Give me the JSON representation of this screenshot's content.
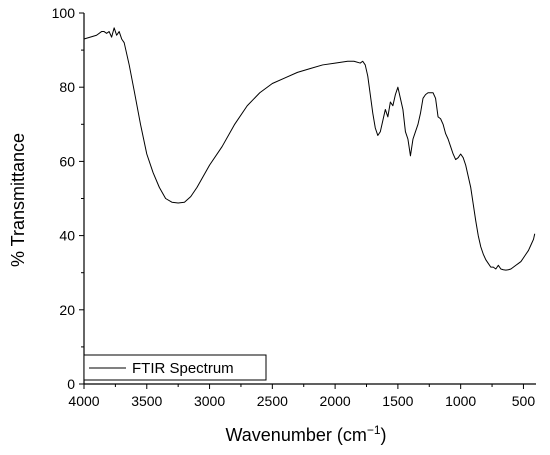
{
  "chart_data": {
    "type": "line",
    "title": "",
    "xlabel": "Wavenumber (cm",
    "xlabel_superscript": "−1",
    "xlabel_suffix": ")",
    "ylabel": "% Transmittance",
    "xlim": [
      4000,
      400
    ],
    "x_reversed": true,
    "ylim": [
      0,
      100
    ],
    "x_ticks": [
      4000,
      3500,
      3000,
      2500,
      2000,
      1500,
      1000,
      500
    ],
    "y_ticks": [
      0,
      20,
      40,
      60,
      80,
      100
    ],
    "grid": false,
    "legend": {
      "position": "bottom-left",
      "entries": [
        "FTIR Spectrum"
      ]
    },
    "series": [
      {
        "name": "FTIR Spectrum",
        "color": "#000000",
        "x": [
          4000,
          3950,
          3900,
          3860,
          3840,
          3820,
          3800,
          3780,
          3760,
          3740,
          3720,
          3700,
          3680,
          3660,
          3640,
          3600,
          3550,
          3500,
          3450,
          3400,
          3350,
          3300,
          3250,
          3200,
          3150,
          3100,
          3050,
          3000,
          2900,
          2800,
          2700,
          2600,
          2500,
          2400,
          2300,
          2200,
          2100,
          2000,
          1900,
          1850,
          1800,
          1780,
          1760,
          1740,
          1720,
          1700,
          1680,
          1660,
          1640,
          1620,
          1600,
          1580,
          1560,
          1540,
          1520,
          1500,
          1480,
          1460,
          1440,
          1420,
          1400,
          1380,
          1360,
          1340,
          1320,
          1300,
          1280,
          1260,
          1240,
          1220,
          1200,
          1180,
          1160,
          1140,
          1120,
          1100,
          1080,
          1060,
          1040,
          1020,
          1000,
          980,
          960,
          940,
          920,
          900,
          880,
          860,
          840,
          820,
          800,
          780,
          760,
          740,
          720,
          700,
          680,
          660,
          640,
          620,
          600,
          580,
          560,
          540,
          520,
          500,
          480,
          460,
          440,
          420,
          410
        ],
        "y": [
          93,
          93.5,
          94,
          95,
          95,
          94.5,
          95,
          93.5,
          96,
          94,
          95,
          93,
          92,
          89,
          86,
          79,
          70,
          62,
          57,
          53,
          50,
          49,
          48.8,
          49,
          50.5,
          53,
          56,
          59,
          64,
          70,
          75,
          78.5,
          81,
          82.5,
          84,
          85,
          86,
          86.5,
          87,
          87,
          86.5,
          87,
          86,
          83,
          78,
          73,
          69,
          67,
          68,
          71,
          74,
          72,
          76,
          75,
          78,
          80,
          77,
          74,
          68,
          66,
          61.5,
          66,
          68,
          70,
          73,
          77,
          78,
          78.5,
          78.5,
          78.5,
          77,
          72,
          71.5,
          70,
          67.5,
          66,
          64,
          62,
          60.5,
          61,
          62,
          61,
          59,
          56,
          53,
          48.5,
          44,
          40,
          37,
          35,
          33.5,
          32.5,
          31.5,
          31.5,
          31,
          32,
          31,
          30.8,
          30.7,
          30.8,
          31,
          31.5,
          32,
          32.5,
          33,
          34,
          35,
          36,
          37.5,
          39,
          40.5
        ]
      }
    ]
  }
}
